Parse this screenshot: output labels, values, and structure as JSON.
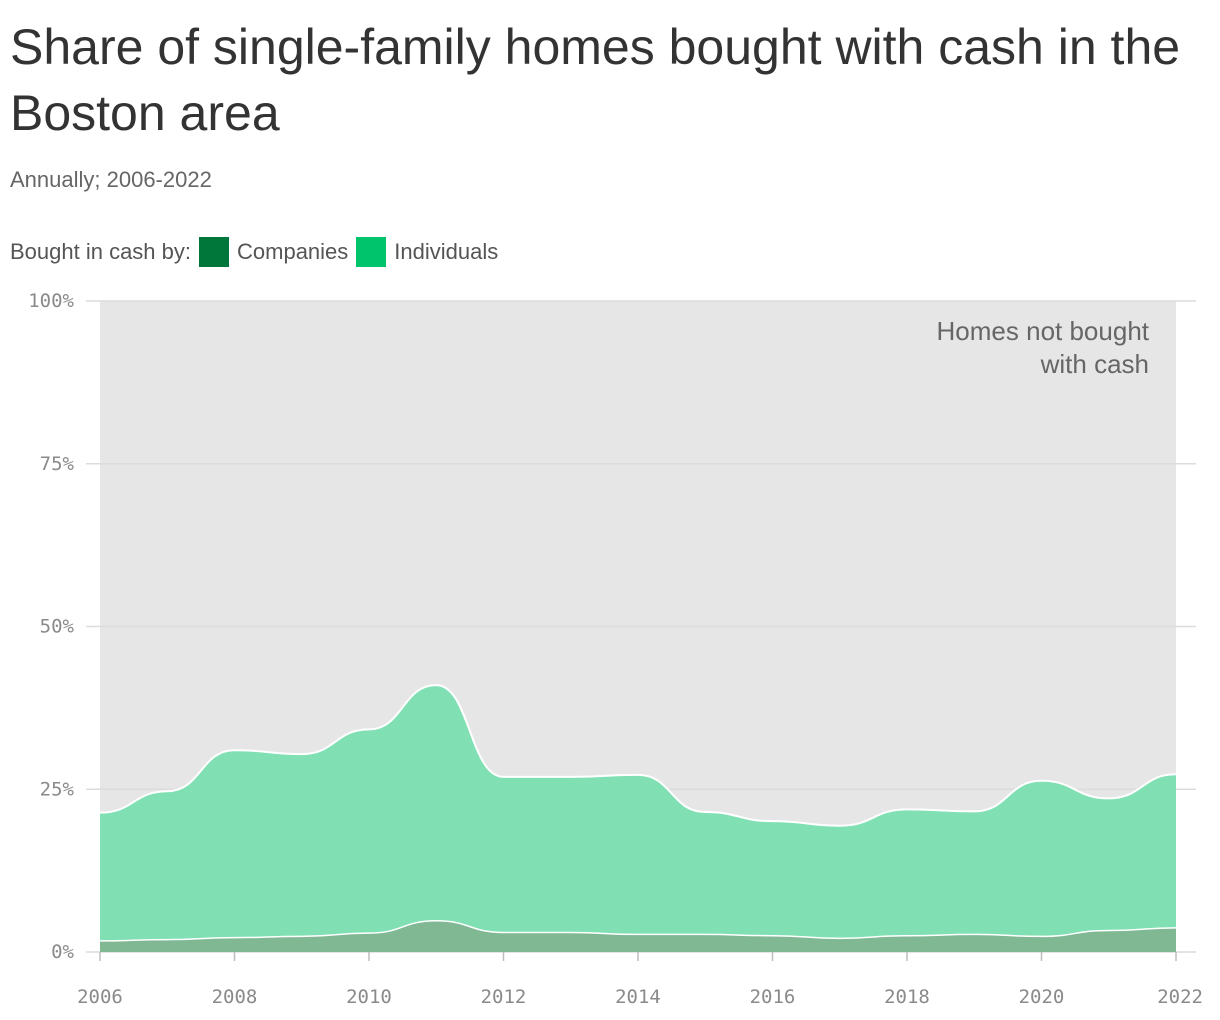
{
  "title": "Share of single-family homes bought with cash in the Boston area",
  "subtitle": "Annually; 2006-2022",
  "legend": {
    "label": "Bought in cash by:",
    "items": [
      {
        "label": "Companies",
        "color": "#00773a"
      },
      {
        "label": "Individuals",
        "color": "#00c46c"
      }
    ]
  },
  "colors": {
    "background_area": "#e6e6e6",
    "individuals_fill": "#80e0b4",
    "companies_fill": "#80b894",
    "gridline": "#dcdcdc",
    "series_stroke": "#ffffff"
  },
  "chart_data": {
    "type": "area",
    "stacked": true,
    "title": "Share of single-family homes bought with cash in the Boston area",
    "subtitle": "Annually; 2006-2022",
    "x": [
      2006,
      2007,
      2008,
      2009,
      2010,
      2011,
      2012,
      2013,
      2014,
      2015,
      2016,
      2017,
      2018,
      2019,
      2020,
      2021,
      2022
    ],
    "series": [
      {
        "name": "Companies",
        "values": [
          1.7,
          1.9,
          2.2,
          2.4,
          2.9,
          4.8,
          3.0,
          3.0,
          2.7,
          2.7,
          2.5,
          2.1,
          2.5,
          2.7,
          2.4,
          3.3,
          3.7
        ]
      },
      {
        "name": "Individuals",
        "values": [
          19.7,
          22.8,
          28.8,
          28.0,
          31.3,
          36.2,
          23.9,
          23.9,
          24.5,
          18.8,
          17.6,
          17.3,
          19.4,
          18.9,
          23.9,
          20.3,
          23.6
        ]
      }
    ],
    "ylim": [
      0,
      100
    ],
    "yticks": [
      "0%",
      "25%",
      "50%",
      "75%",
      "100%"
    ],
    "xticks": [
      "2006",
      "2008",
      "2010",
      "2012",
      "2014",
      "2016",
      "2018",
      "2020",
      "2022"
    ],
    "annotations": [
      "Homes not bought",
      "with cash"
    ],
    "grid": true,
    "legend_position": "top-left"
  }
}
